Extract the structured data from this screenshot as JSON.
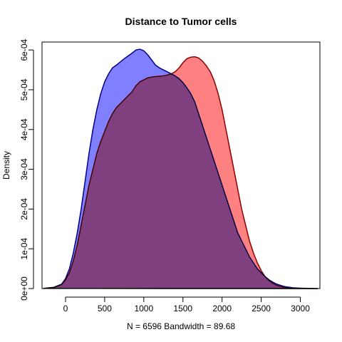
{
  "chart_data": {
    "type": "area",
    "title": "Distance to Tumor cells",
    "ylabel": "Density",
    "xlabel": "N = 6596   Bandwidth = 89.68",
    "xlim": [
      -300,
      3250
    ],
    "ylim": [
      0,
      0.00062
    ],
    "x_ticks": [
      0,
      500,
      1000,
      1500,
      2000,
      2500,
      3000
    ],
    "x_tick_labels": [
      "0",
      "500",
      "1000",
      "1500",
      "2000",
      "2500",
      "3000"
    ],
    "y_ticks": [
      0,
      0.0001,
      0.0002,
      0.0003,
      0.0004,
      0.0005,
      0.0006
    ],
    "y_tick_labels": [
      "0e+00",
      "1e-04",
      "2e-04",
      "3e-04",
      "4e-04",
      "5e-04",
      "6e-04"
    ],
    "grid": false,
    "series": [
      {
        "fill": "#8080ff",
        "stroke": "#00008b",
        "x": [
          -280,
          -150,
          -50,
          0,
          50,
          100,
          150,
          200,
          250,
          300,
          350,
          400,
          450,
          500,
          550,
          600,
          650,
          700,
          750,
          800,
          850,
          900,
          950,
          1000,
          1050,
          1100,
          1150,
          1200,
          1250,
          1300,
          1350,
          1400,
          1450,
          1500,
          1550,
          1600,
          1650,
          1700,
          1750,
          1800,
          1850,
          1900,
          1950,
          2000,
          2050,
          2100,
          2150,
          2200,
          2250,
          2300,
          2350,
          2400,
          2450,
          2500,
          2550,
          2600,
          2650,
          2700,
          2750,
          2800,
          2900,
          3000,
          3100,
          3220
        ],
        "y": [
          5e-07,
          3e-06,
          1.1e-05,
          2.5e-05,
          5e-05,
          9e-05,
          0.00014,
          0.0002,
          0.00027,
          0.00034,
          0.0004,
          0.00045,
          0.00049,
          0.00052,
          0.00054,
          0.000555,
          0.000562,
          0.00057,
          0.000578,
          0.000585,
          0.000592,
          0.0006,
          0.000602,
          0.000598,
          0.000588,
          0.000575,
          0.000562,
          0.000555,
          0.00055,
          0.000545,
          0.00054,
          0.000535,
          0.000528,
          0.000518,
          0.000505,
          0.00049,
          0.00047,
          0.00044,
          0.00041,
          0.00038,
          0.00035,
          0.00032,
          0.00029,
          0.00026,
          0.00023,
          0.0002,
          0.00017,
          0.00014,
          0.00012,
          0.0001,
          8e-05,
          6.5e-05,
          5e-05,
          4e-05,
          3e-05,
          2.2e-05,
          1.6e-05,
          1.1e-05,
          8e-06,
          5e-06,
          2e-06,
          1e-06,
          4e-07,
          1e-07
        ]
      },
      {
        "fill": "#ff8080",
        "stroke": "#8b0000",
        "x": [
          -280,
          -150,
          -50,
          0,
          50,
          100,
          150,
          200,
          250,
          300,
          350,
          400,
          450,
          500,
          550,
          600,
          650,
          700,
          750,
          800,
          850,
          900,
          950,
          1000,
          1050,
          1100,
          1150,
          1200,
          1250,
          1300,
          1350,
          1400,
          1450,
          1500,
          1550,
          1600,
          1650,
          1700,
          1750,
          1800,
          1850,
          1900,
          1950,
          2000,
          2050,
          2100,
          2150,
          2200,
          2250,
          2300,
          2350,
          2400,
          2450,
          2500,
          2550,
          2600,
          2650,
          2700,
          2750,
          2800,
          2900,
          3000,
          3100,
          3220
        ],
        "y": [
          5e-07,
          3e-06,
          1e-05,
          2.2e-05,
          4e-05,
          7e-05,
          0.00011,
          0.00016,
          0.00021,
          0.00026,
          0.0003,
          0.00034,
          0.00037,
          0.000395,
          0.00042,
          0.00044,
          0.000455,
          0.000465,
          0.000475,
          0.000485,
          0.000495,
          0.00051,
          0.00052,
          0.000525,
          0.00053,
          0.000532,
          0.000533,
          0.000534,
          0.000535,
          0.000537,
          0.00054,
          0.000545,
          0.000555,
          0.000568,
          0.000578,
          0.000582,
          0.000583,
          0.00058,
          0.000572,
          0.00056,
          0.000545,
          0.000522,
          0.00049,
          0.00045,
          0.0004,
          0.00035,
          0.0003,
          0.00025,
          0.0002,
          0.00016,
          0.00012,
          9e-05,
          6.5e-05,
          4.5e-05,
          3e-05,
          2e-05,
          1.3e-05,
          8e-06,
          5e-06,
          3e-06,
          1e-06,
          5e-07,
          2e-07,
          1e-07
        ]
      }
    ]
  }
}
